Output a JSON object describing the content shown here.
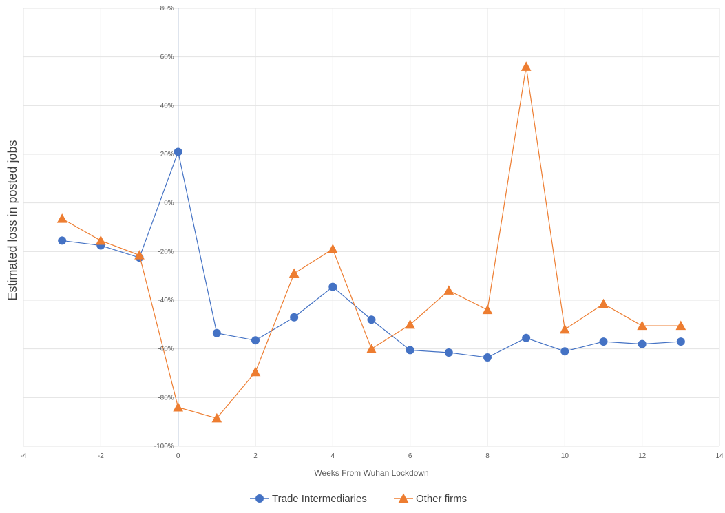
{
  "chart_data": {
    "type": "line",
    "title": "",
    "xlabel": "Weeks From Wuhan Lockdown",
    "ylabel": "Estimated loss in posted jobs",
    "xlim": [
      -4,
      14
    ],
    "ylim": [
      -100,
      80
    ],
    "x_ticks": [
      -4,
      -2,
      0,
      2,
      4,
      6,
      8,
      10,
      12,
      14
    ],
    "y_ticks": [
      -100,
      -80,
      -60,
      -40,
      -20,
      0,
      20,
      40,
      60,
      80
    ],
    "x_tick_labels": [
      "-4",
      "-2",
      "0",
      "2",
      "4",
      "6",
      "8",
      "10",
      "12",
      "14"
    ],
    "y_tick_labels": [
      "-100%",
      "-80%",
      "-60%",
      "-40%",
      "-20%",
      "0%",
      "20%",
      "40%",
      "60%",
      "80%"
    ],
    "grid": true,
    "legend_position": "bottom",
    "x": [
      -3,
      -2,
      -1,
      0,
      1,
      2,
      3,
      4,
      5,
      6,
      7,
      8,
      9,
      10,
      11,
      12,
      13
    ],
    "series": [
      {
        "name": "Trade Intermediaries",
        "color": "#4472C4",
        "marker": "circle",
        "values": [
          -15.5,
          -17.5,
          -22.5,
          21,
          -53.5,
          -56.5,
          -47,
          -34.5,
          -48,
          -60.5,
          -61.5,
          -63.5,
          -55.5,
          -61,
          -57,
          -58,
          -57
        ]
      },
      {
        "name": "Other firms",
        "color": "#ED7D31",
        "marker": "triangle",
        "values": [
          -6.5,
          -15.5,
          -21.5,
          -84,
          -88.5,
          -69.5,
          -29,
          -19,
          -60,
          -50,
          -36,
          -44,
          56,
          -52,
          -41.5,
          -50.5,
          -50.5
        ]
      }
    ]
  }
}
